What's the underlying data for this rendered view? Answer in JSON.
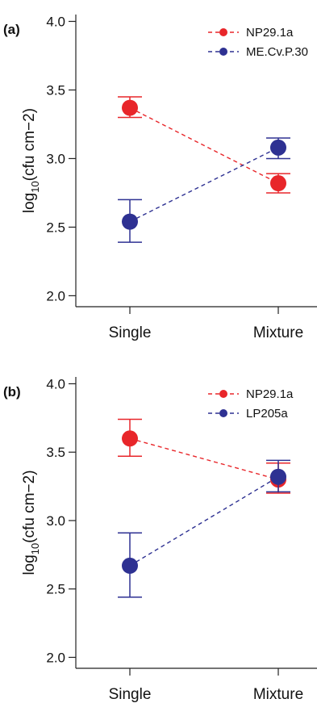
{
  "chart_data": [
    {
      "type": "line",
      "panel": "(a)",
      "categories": [
        "Single",
        "Mixture"
      ],
      "ylabel": "log10(cfu cm−2)",
      "ylabel_base": "log",
      "ylabel_sub": "10",
      "ylabel_rest": "(cfu cm−2)",
      "ylim": [
        1.92,
        4.05
      ],
      "yticks": [
        "2.0",
        "2.5",
        "3.0",
        "3.5",
        "4.0"
      ],
      "legend_position": "top-right",
      "series": [
        {
          "name": "NP29.1a",
          "color": "#e8262a",
          "values": [
            3.37,
            2.82
          ],
          "err_low": [
            3.3,
            2.75
          ],
          "err_high": [
            3.45,
            2.89
          ]
        },
        {
          "name": "ME.Cv.P.30",
          "color": "#2e3192",
          "values": [
            2.54,
            3.08
          ],
          "err_low": [
            2.39,
            3.0
          ],
          "err_high": [
            2.7,
            3.15
          ]
        }
      ]
    },
    {
      "type": "line",
      "panel": "(b)",
      "categories": [
        "Single",
        "Mixture"
      ],
      "ylabel": "log10(cfu cm−2)",
      "ylabel_base": "log",
      "ylabel_sub": "10",
      "ylabel_rest": "(cfu cm−2)",
      "ylim": [
        1.92,
        4.05
      ],
      "yticks": [
        "2.0",
        "2.5",
        "3.0",
        "3.5",
        "4.0"
      ],
      "legend_position": "top-right",
      "series": [
        {
          "name": "NP29.1a",
          "color": "#e8262a",
          "values": [
            3.6,
            3.3
          ],
          "err_low": [
            3.47,
            3.2
          ],
          "err_high": [
            3.74,
            3.42
          ]
        },
        {
          "name": "LP205a",
          "color": "#2e3192",
          "values": [
            2.67,
            3.32
          ],
          "err_low": [
            2.44,
            3.21
          ],
          "err_high": [
            2.91,
            3.44
          ]
        }
      ]
    }
  ]
}
